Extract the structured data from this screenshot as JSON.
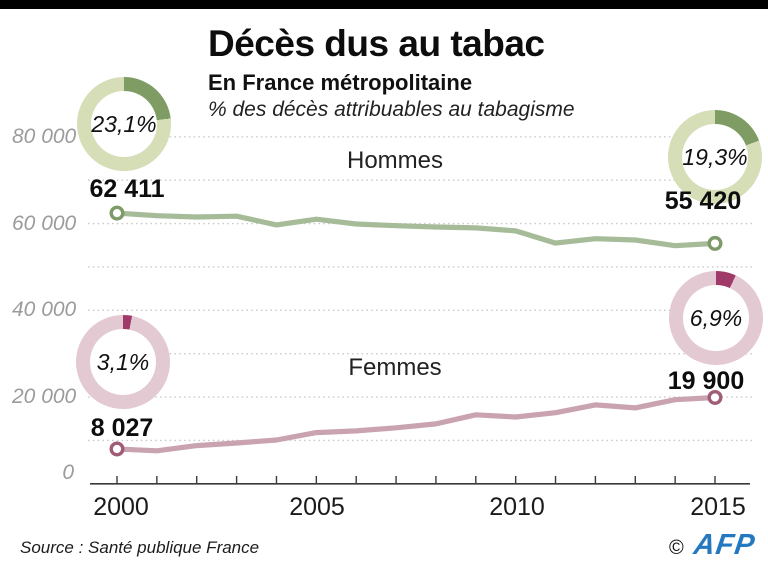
{
  "header": {
    "title": "Décès dus au tabac",
    "subtitle": "En France métropolitaine",
    "note": "% des décès attribuables au tabagisme"
  },
  "chart_data": {
    "type": "line",
    "x": [
      2000,
      2001,
      2002,
      2003,
      2004,
      2005,
      2006,
      2007,
      2008,
      2009,
      2010,
      2011,
      2012,
      2013,
      2014,
      2015
    ],
    "series": [
      {
        "name": "Hommes",
        "color": "#a6bc98",
        "marker_color": "#7d9b68",
        "values": [
          62411,
          61800,
          61500,
          61700,
          59700,
          61000,
          59900,
          59500,
          59200,
          59000,
          58300,
          55500,
          56500,
          56200,
          54900,
          55420
        ],
        "start_value_label": "62 411",
        "end_value_label": "55 420"
      },
      {
        "name": "Femmes",
        "color": "#c9a3b0",
        "marker_color": "#a05c77",
        "values": [
          8027,
          7600,
          8800,
          9400,
          10100,
          11800,
          12200,
          12900,
          13800,
          15900,
          15400,
          16400,
          18200,
          17500,
          19400,
          19900
        ],
        "start_value_label": "8 027",
        "end_value_label": "19 900"
      }
    ],
    "ylim": [
      0,
      84000
    ],
    "grid_values": [
      80000,
      70000,
      60000,
      50000,
      40000,
      30000,
      20000,
      10000
    ],
    "y_ticks": [
      {
        "label": "80 000",
        "value": 80000
      },
      {
        "label": "60 000",
        "value": 60000
      },
      {
        "label": "40 000",
        "value": 40000
      },
      {
        "label": "20 000",
        "value": 20000
      },
      {
        "label": "0",
        "value": 0
      }
    ],
    "x_ticks": [
      {
        "label": "2000",
        "value": 2000
      },
      {
        "label": "2005",
        "value": 2005
      },
      {
        "label": "2010",
        "value": 2010
      },
      {
        "label": "2015",
        "value": 2015
      }
    ],
    "grid_on": true,
    "legend_position": "inline"
  },
  "donuts": [
    {
      "id": "hommes-2000",
      "label": "23,1%",
      "percent": 23.1,
      "ring_color": "#d5deb7",
      "arc_color": "#7e9c63"
    },
    {
      "id": "hommes-2015",
      "label": "19,3%",
      "percent": 19.3,
      "ring_color": "#d5deb7",
      "arc_color": "#7e9c63"
    },
    {
      "id": "femmes-2000",
      "label": "3,1%",
      "percent": 3.1,
      "ring_color": "#e3c9d1",
      "arc_color": "#a03a68"
    },
    {
      "id": "femmes-2015",
      "label": "6,9%",
      "percent": 6.9,
      "ring_color": "#e3c9d1",
      "arc_color": "#a03a68"
    }
  ],
  "footer": {
    "source": "Source : Santé publique France",
    "copyright": "©",
    "logo": "AFP",
    "logo_color": "#2478bf"
  }
}
